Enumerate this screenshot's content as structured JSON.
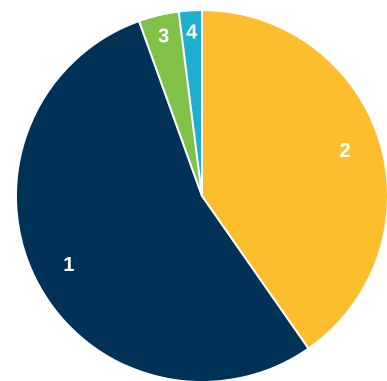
{
  "chart_data": {
    "type": "pie",
    "title": "",
    "legend": "none",
    "slices": [
      {
        "label": "2",
        "value": 40.3,
        "color": "#FDBE2E"
      },
      {
        "label": "1",
        "value": 54.2,
        "color": "#003157"
      },
      {
        "label": "3",
        "value": 3.5,
        "color": "#7FC247"
      },
      {
        "label": "4",
        "value": 2.0,
        "color": "#1EAFCF"
      }
    ]
  }
}
